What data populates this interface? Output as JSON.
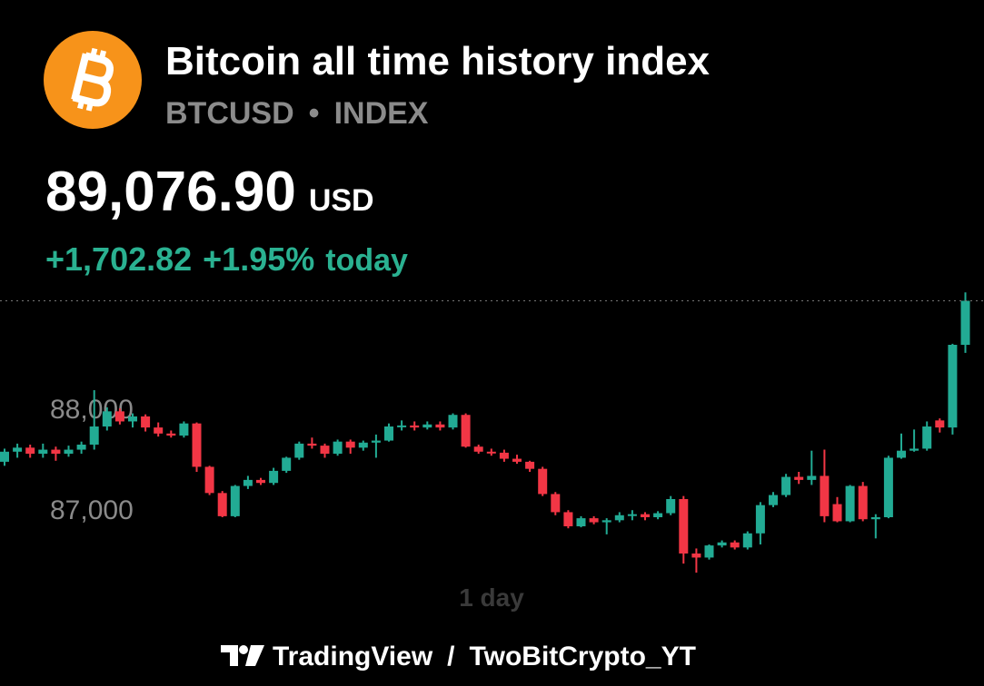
{
  "header": {
    "title": "Bitcoin all time history index",
    "symbol": "BTCUSD",
    "separator": "•",
    "market": "INDEX",
    "price": "89,076.90",
    "currency": "USD",
    "change": "+1,702.82",
    "change_percent": "+1.95%",
    "change_period": "today"
  },
  "chart_data": {
    "type": "candlestick",
    "interval_label": "1 day",
    "ylim": [
      86300,
      89180
    ],
    "yticks": [
      {
        "value": 87000,
        "label": "87,000"
      },
      {
        "value": 88000,
        "label": "88,000"
      }
    ],
    "up_color": "#22ab94",
    "down_color": "#f23645",
    "series": {
      "open": [
        87480,
        87580,
        87620,
        87560,
        87600,
        87560,
        87600,
        87650,
        87830,
        87980,
        87880,
        87930,
        87820,
        87760,
        87740,
        87860,
        87430,
        87170,
        86940,
        87240,
        87300,
        87270,
        87390,
        87520,
        87660,
        87640,
        87560,
        87680,
        87620,
        87670,
        87690,
        87830,
        87840,
        87820,
        87850,
        87820,
        87945,
        87630,
        87580,
        87570,
        87510,
        87480,
        87410,
        87160,
        86980,
        86840,
        86920,
        86880,
        86900,
        86950,
        86960,
        86930,
        86970,
        87110,
        86570,
        86530,
        86650,
        86680,
        86630,
        86770,
        87050,
        87150,
        87330,
        87300,
        87340,
        87060,
        86890,
        87240,
        86910,
        86930,
        87520,
        87590,
        87610,
        87890,
        87820,
        88640
      ],
      "high": [
        87610,
        87660,
        87650,
        87660,
        87630,
        87640,
        87680,
        88190,
        88020,
        88010,
        87960,
        87950,
        87870,
        87790,
        87880,
        87870,
        87440,
        87190,
        87250,
        87340,
        87320,
        87420,
        87530,
        87680,
        87720,
        87660,
        87700,
        87700,
        87690,
        87750,
        87860,
        87890,
        87880,
        87880,
        87880,
        87960,
        87960,
        87650,
        87610,
        87600,
        87550,
        87490,
        87430,
        87180,
        87000,
        86940,
        86940,
        86920,
        86980,
        87000,
        86980,
        86990,
        87140,
        87140,
        86620,
        86660,
        86700,
        86700,
        86790,
        87080,
        87180,
        87360,
        87380,
        87590,
        87600,
        87130,
        87250,
        87280,
        86960,
        87540,
        87760,
        87800,
        87880,
        87910,
        88650,
        89160
      ],
      "low": [
        87440,
        87520,
        87520,
        87520,
        87490,
        87530,
        87560,
        87600,
        87790,
        87850,
        87820,
        87780,
        87730,
        87720,
        87720,
        87380,
        87150,
        86930,
        86930,
        87210,
        87250,
        87250,
        87370,
        87500,
        87610,
        87520,
        87540,
        87560,
        87590,
        87520,
        87680,
        87790,
        87790,
        87800,
        87790,
        87800,
        87620,
        87560,
        87540,
        87480,
        87460,
        87380,
        87140,
        86950,
        86820,
        86830,
        86860,
        86760,
        86880,
        86900,
        86900,
        86910,
        86950,
        86470,
        86380,
        86510,
        86630,
        86610,
        86610,
        86660,
        87030,
        87130,
        87260,
        87250,
        86880,
        86880,
        86880,
        86890,
        86720,
        86920,
        87510,
        87580,
        87590,
        87770,
        87750,
        88560
      ],
      "close": [
        87580,
        87620,
        87560,
        87600,
        87560,
        87600,
        87650,
        87830,
        87980,
        87880,
        87930,
        87820,
        87760,
        87740,
        87860,
        87430,
        87170,
        86940,
        87240,
        87300,
        87270,
        87390,
        87520,
        87660,
        87640,
        87560,
        87680,
        87620,
        87670,
        87690,
        87830,
        87840,
        87820,
        87850,
        87820,
        87945,
        87630,
        87580,
        87570,
        87510,
        87480,
        87410,
        87160,
        86980,
        86840,
        86920,
        86880,
        86900,
        86950,
        86960,
        86930,
        86970,
        87110,
        86570,
        86530,
        86650,
        86680,
        86630,
        86770,
        87050,
        87150,
        87330,
        87300,
        87340,
        86940,
        86890,
        87240,
        86910,
        86930,
        87520,
        87590,
        87610,
        87830,
        87820,
        88640,
        89076.9
      ]
    }
  },
  "footer": {
    "brand": "TradingView",
    "separator": "/",
    "author": "TwoBitCrypto_YT"
  }
}
